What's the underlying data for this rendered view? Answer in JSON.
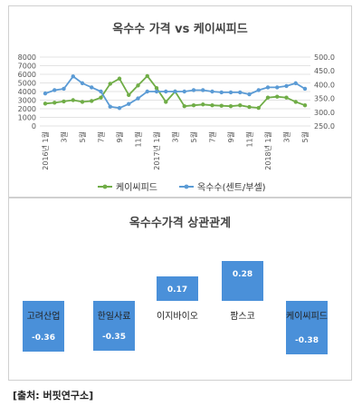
{
  "chart_data": [
    {
      "type": "line",
      "title": "옥수수 가격 vs 케이씨피드",
      "x": [
        "1",
        "2",
        "3",
        "4",
        "5",
        "6",
        "7",
        "8",
        "9",
        "10",
        "11",
        "12",
        "1",
        "2",
        "3",
        "4",
        "5",
        "6",
        "7",
        "8",
        "9",
        "10",
        "11",
        "12",
        "1",
        "2",
        "3",
        "4",
        "5"
      ],
      "x_tick_labels": [
        "2016년 1월",
        "3월",
        "5월",
        "7월",
        "9월",
        "11월",
        "2017년 1월",
        "3월",
        "5월",
        "7월",
        "9월",
        "11월",
        "2018년 1월",
        "3월",
        "5월"
      ],
      "y_left_ticks": [
        "0",
        "1000",
        "2000",
        "3000",
        "4000",
        "5000",
        "6000",
        "7000",
        "8000"
      ],
      "y_left_lim": [
        0,
        8000
      ],
      "y_right_ticks": [
        "250.0",
        "300.0",
        "350.0",
        "400.0",
        "450.0",
        "500.0"
      ],
      "y_right_lim": [
        250,
        500
      ],
      "legend_position": "bottom",
      "series": [
        {
          "name": "케이씨피드",
          "axis": "left",
          "color": "#70ad47",
          "values": [
            2600,
            2700,
            2850,
            3000,
            2800,
            2900,
            3300,
            4900,
            5500,
            3600,
            4700,
            5800,
            4400,
            2800,
            4000,
            2300,
            2400,
            2500,
            2400,
            2350,
            2300,
            2400,
            2200,
            2100,
            3300,
            3400,
            3300,
            2800,
            2400
          ]
        },
        {
          "name": "옥수수(센트/부셀)",
          "axis": "right",
          "color": "#5b9bd5",
          "values": [
            368,
            380,
            385,
            430,
            405,
            390,
            375,
            320,
            315,
            330,
            350,
            375,
            375,
            375,
            375,
            375,
            380,
            380,
            375,
            372,
            372,
            372,
            365,
            380,
            390,
            390,
            395,
            405,
            385
          ]
        }
      ]
    },
    {
      "type": "bar",
      "title": "옥수수가격 상관관계",
      "categories": [
        "고려산업",
        "한일사료",
        "이지바이오",
        "팜스코",
        "케이씨피드"
      ],
      "values": [
        -0.36,
        -0.35,
        0.17,
        0.28,
        -0.38
      ],
      "value_labels": [
        "-0.36",
        "-0.35",
        "0.17",
        "0.28",
        "-0.38"
      ],
      "color": "#4a90d9"
    }
  ],
  "source": "[출처: 버핏연구소]"
}
